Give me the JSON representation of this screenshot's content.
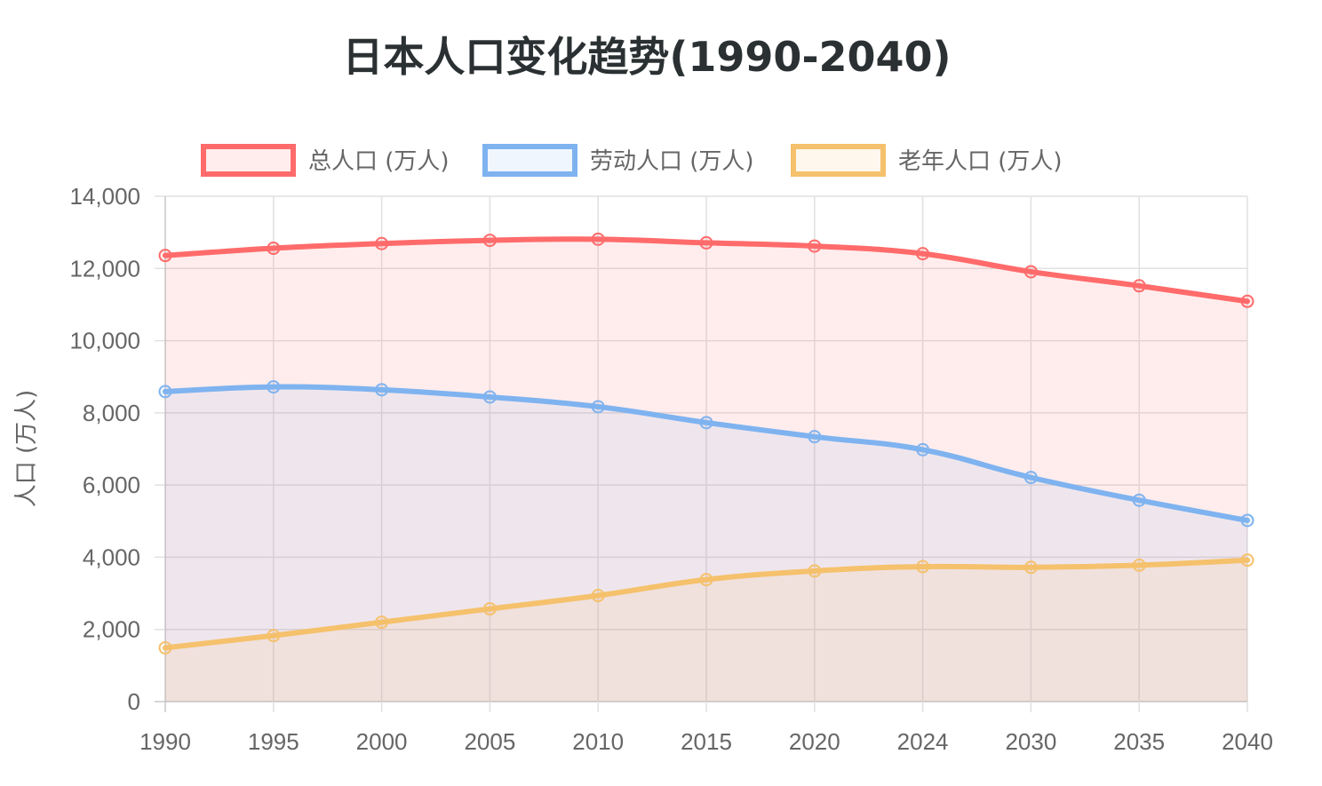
{
  "chart_data": {
    "type": "area",
    "title": "日本人口变化趋势(1990-2040)",
    "xlabel": "",
    "ylabel": "人口 (万人)",
    "categories": [
      "1990",
      "1995",
      "2000",
      "2005",
      "2010",
      "2015",
      "2020",
      "2024",
      "2030",
      "2035",
      "2040"
    ],
    "ylim": [
      0,
      14000
    ],
    "yticks": [
      0,
      2000,
      4000,
      6000,
      8000,
      10000,
      12000,
      14000
    ],
    "ytick_labels": [
      "0",
      "2,000",
      "4,000",
      "6,000",
      "8,000",
      "10,000",
      "12,000",
      "14,000"
    ],
    "grid": true,
    "legend_position": "top",
    "series": [
      {
        "name": "总人口 (万人)",
        "color": "#ff6b6b",
        "fill": "rgba(255,107,107,0.12)",
        "values": [
          12360,
          12560,
          12690,
          12780,
          12810,
          12710,
          12620,
          12410,
          11910,
          11520,
          11090
        ]
      },
      {
        "name": "劳动人口 (万人)",
        "color": "#7fb3f0",
        "fill": "rgba(127,179,240,0.12)",
        "values": [
          8590,
          8720,
          8640,
          8440,
          8170,
          7730,
          7340,
          6980,
          6210,
          5580,
          5020
        ]
      },
      {
        "name": "老年人口 (万人)",
        "color": "#f5c16c",
        "fill": "rgba(245,193,108,0.12)",
        "values": [
          1490,
          1830,
          2200,
          2570,
          2940,
          3380,
          3620,
          3740,
          3720,
          3780,
          3920
        ]
      }
    ]
  }
}
